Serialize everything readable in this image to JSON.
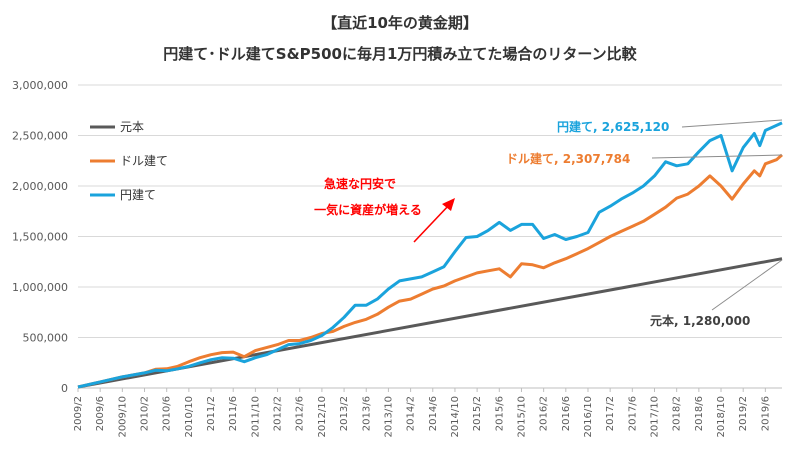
{
  "chart_data": {
    "type": "line",
    "title": "【直近10年の黄金期】",
    "subtitle": "円建て･ドル建てS&P500に毎月1万円積み立てた場合のリターン比較",
    "xlabel": "",
    "ylabel": "",
    "ylim": [
      0,
      3000000
    ],
    "yticks": [
      "0",
      "500,000",
      "1,000,000",
      "1,500,000",
      "2,000,000",
      "2,500,000",
      "3,000,000"
    ],
    "x_ticks": [
      "2009/2",
      "2009/6",
      "2009/10",
      "2010/2",
      "2010/6",
      "2010/10",
      "2011/2",
      "2011/6",
      "2011/10",
      "2012/2",
      "2012/6",
      "2012/10",
      "2013/2",
      "2013/6",
      "2013/10",
      "2014/2",
      "2014/6",
      "2014/10",
      "2015/2",
      "2015/6",
      "2015/10",
      "2016/2",
      "2016/6",
      "2016/10",
      "2017/2",
      "2017/6",
      "2017/10",
      "2018/2",
      "2018/6",
      "2018/10",
      "2019/2",
      "2019/6"
    ],
    "grid": "horizontal",
    "legend_position": "left",
    "series": [
      {
        "name": "元本",
        "color": "#595959",
        "points": [
          [
            "2009/2",
            10000
          ],
          [
            "2019/9",
            1280000
          ]
        ]
      },
      {
        "name": "ドル建て",
        "color": "#ED7D31",
        "points": [
          [
            "2009/2",
            10000
          ],
          [
            "2009/6",
            60000
          ],
          [
            "2009/10",
            110000
          ],
          [
            "2010/2",
            150000
          ],
          [
            "2010/4",
            185000
          ],
          [
            "2010/6",
            190000
          ],
          [
            "2010/8",
            215000
          ],
          [
            "2010/10",
            260000
          ],
          [
            "2010/12",
            300000
          ],
          [
            "2011/2",
            330000
          ],
          [
            "2011/4",
            350000
          ],
          [
            "2011/6",
            355000
          ],
          [
            "2011/8",
            310000
          ],
          [
            "2011/10",
            370000
          ],
          [
            "2011/12",
            400000
          ],
          [
            "2012/2",
            430000
          ],
          [
            "2012/4",
            470000
          ],
          [
            "2012/6",
            470000
          ],
          [
            "2012/8",
            500000
          ],
          [
            "2012/10",
            540000
          ],
          [
            "2012/12",
            560000
          ],
          [
            "2013/2",
            610000
          ],
          [
            "2013/4",
            650000
          ],
          [
            "2013/6",
            680000
          ],
          [
            "2013/8",
            730000
          ],
          [
            "2013/10",
            800000
          ],
          [
            "2013/12",
            860000
          ],
          [
            "2014/2",
            880000
          ],
          [
            "2014/4",
            930000
          ],
          [
            "2014/6",
            980000
          ],
          [
            "2014/8",
            1010000
          ],
          [
            "2014/10",
            1060000
          ],
          [
            "2014/12",
            1100000
          ],
          [
            "2015/2",
            1140000
          ],
          [
            "2015/4",
            1160000
          ],
          [
            "2015/6",
            1180000
          ],
          [
            "2015/8",
            1100000
          ],
          [
            "2015/10",
            1230000
          ],
          [
            "2015/12",
            1220000
          ],
          [
            "2016/2",
            1190000
          ],
          [
            "2016/4",
            1240000
          ],
          [
            "2016/6",
            1280000
          ],
          [
            "2016/8",
            1330000
          ],
          [
            "2016/10",
            1380000
          ],
          [
            "2016/12",
            1440000
          ],
          [
            "2017/2",
            1500000
          ],
          [
            "2017/4",
            1550000
          ],
          [
            "2017/6",
            1600000
          ],
          [
            "2017/8",
            1650000
          ],
          [
            "2017/10",
            1720000
          ],
          [
            "2017/12",
            1790000
          ],
          [
            "2018/2",
            1880000
          ],
          [
            "2018/4",
            1920000
          ],
          [
            "2018/6",
            2000000
          ],
          [
            "2018/8",
            2100000
          ],
          [
            "2018/10",
            2000000
          ],
          [
            "2018/12",
            1870000
          ],
          [
            "2019/2",
            2020000
          ],
          [
            "2019/4",
            2150000
          ],
          [
            "2019/5",
            2100000
          ],
          [
            "2019/6",
            2220000
          ],
          [
            "2019/8",
            2260000
          ],
          [
            "2019/9",
            2307784
          ]
        ]
      },
      {
        "name": "円建て",
        "color": "#1AA3DC",
        "points": [
          [
            "2009/2",
            10000
          ],
          [
            "2009/6",
            60000
          ],
          [
            "2009/10",
            110000
          ],
          [
            "2010/2",
            150000
          ],
          [
            "2010/4",
            175000
          ],
          [
            "2010/6",
            170000
          ],
          [
            "2010/8",
            190000
          ],
          [
            "2010/10",
            215000
          ],
          [
            "2010/12",
            250000
          ],
          [
            "2011/2",
            280000
          ],
          [
            "2011/4",
            300000
          ],
          [
            "2011/6",
            295000
          ],
          [
            "2011/8",
            260000
          ],
          [
            "2011/10",
            300000
          ],
          [
            "2011/12",
            330000
          ],
          [
            "2012/2",
            380000
          ],
          [
            "2012/4",
            430000
          ],
          [
            "2012/6",
            440000
          ],
          [
            "2012/8",
            470000
          ],
          [
            "2012/10",
            520000
          ],
          [
            "2012/12",
            600000
          ],
          [
            "2013/2",
            700000
          ],
          [
            "2013/4",
            820000
          ],
          [
            "2013/6",
            820000
          ],
          [
            "2013/8",
            880000
          ],
          [
            "2013/10",
            980000
          ],
          [
            "2013/12",
            1060000
          ],
          [
            "2014/2",
            1080000
          ],
          [
            "2014/4",
            1100000
          ],
          [
            "2014/6",
            1150000
          ],
          [
            "2014/8",
            1200000
          ],
          [
            "2014/10",
            1350000
          ],
          [
            "2014/12",
            1490000
          ],
          [
            "2015/2",
            1500000
          ],
          [
            "2015/4",
            1560000
          ],
          [
            "2015/6",
            1640000
          ],
          [
            "2015/8",
            1560000
          ],
          [
            "2015/10",
            1620000
          ],
          [
            "2015/12",
            1620000
          ],
          [
            "2016/2",
            1480000
          ],
          [
            "2016/4",
            1520000
          ],
          [
            "2016/6",
            1470000
          ],
          [
            "2016/8",
            1500000
          ],
          [
            "2016/10",
            1540000
          ],
          [
            "2016/12",
            1740000
          ],
          [
            "2017/2",
            1800000
          ],
          [
            "2017/4",
            1870000
          ],
          [
            "2017/6",
            1930000
          ],
          [
            "2017/8",
            2000000
          ],
          [
            "2017/10",
            2100000
          ],
          [
            "2017/12",
            2240000
          ],
          [
            "2018/2",
            2200000
          ],
          [
            "2018/4",
            2220000
          ],
          [
            "2018/6",
            2340000
          ],
          [
            "2018/8",
            2450000
          ],
          [
            "2018/10",
            2500000
          ],
          [
            "2018/12",
            2150000
          ],
          [
            "2019/2",
            2380000
          ],
          [
            "2019/4",
            2520000
          ],
          [
            "2019/5",
            2400000
          ],
          [
            "2019/6",
            2550000
          ],
          [
            "2019/8",
            2600000
          ],
          [
            "2019/9",
            2625120
          ]
        ]
      }
    ],
    "annotations": {
      "yen_label": "円建て, 2,625,120",
      "dollar_label": "ドル建て, 2,307,784",
      "principal_label": "元本, 1,280,000",
      "callout_line1": "急速な円安で",
      "callout_line2": "一気に資産が増える"
    },
    "colors": {
      "principal": "#595959",
      "dollar": "#ED7D31",
      "yen": "#1AA3DC",
      "callout": "#FF0000",
      "grid": "#D9D9D9",
      "axis": "#BFBFBF"
    }
  }
}
